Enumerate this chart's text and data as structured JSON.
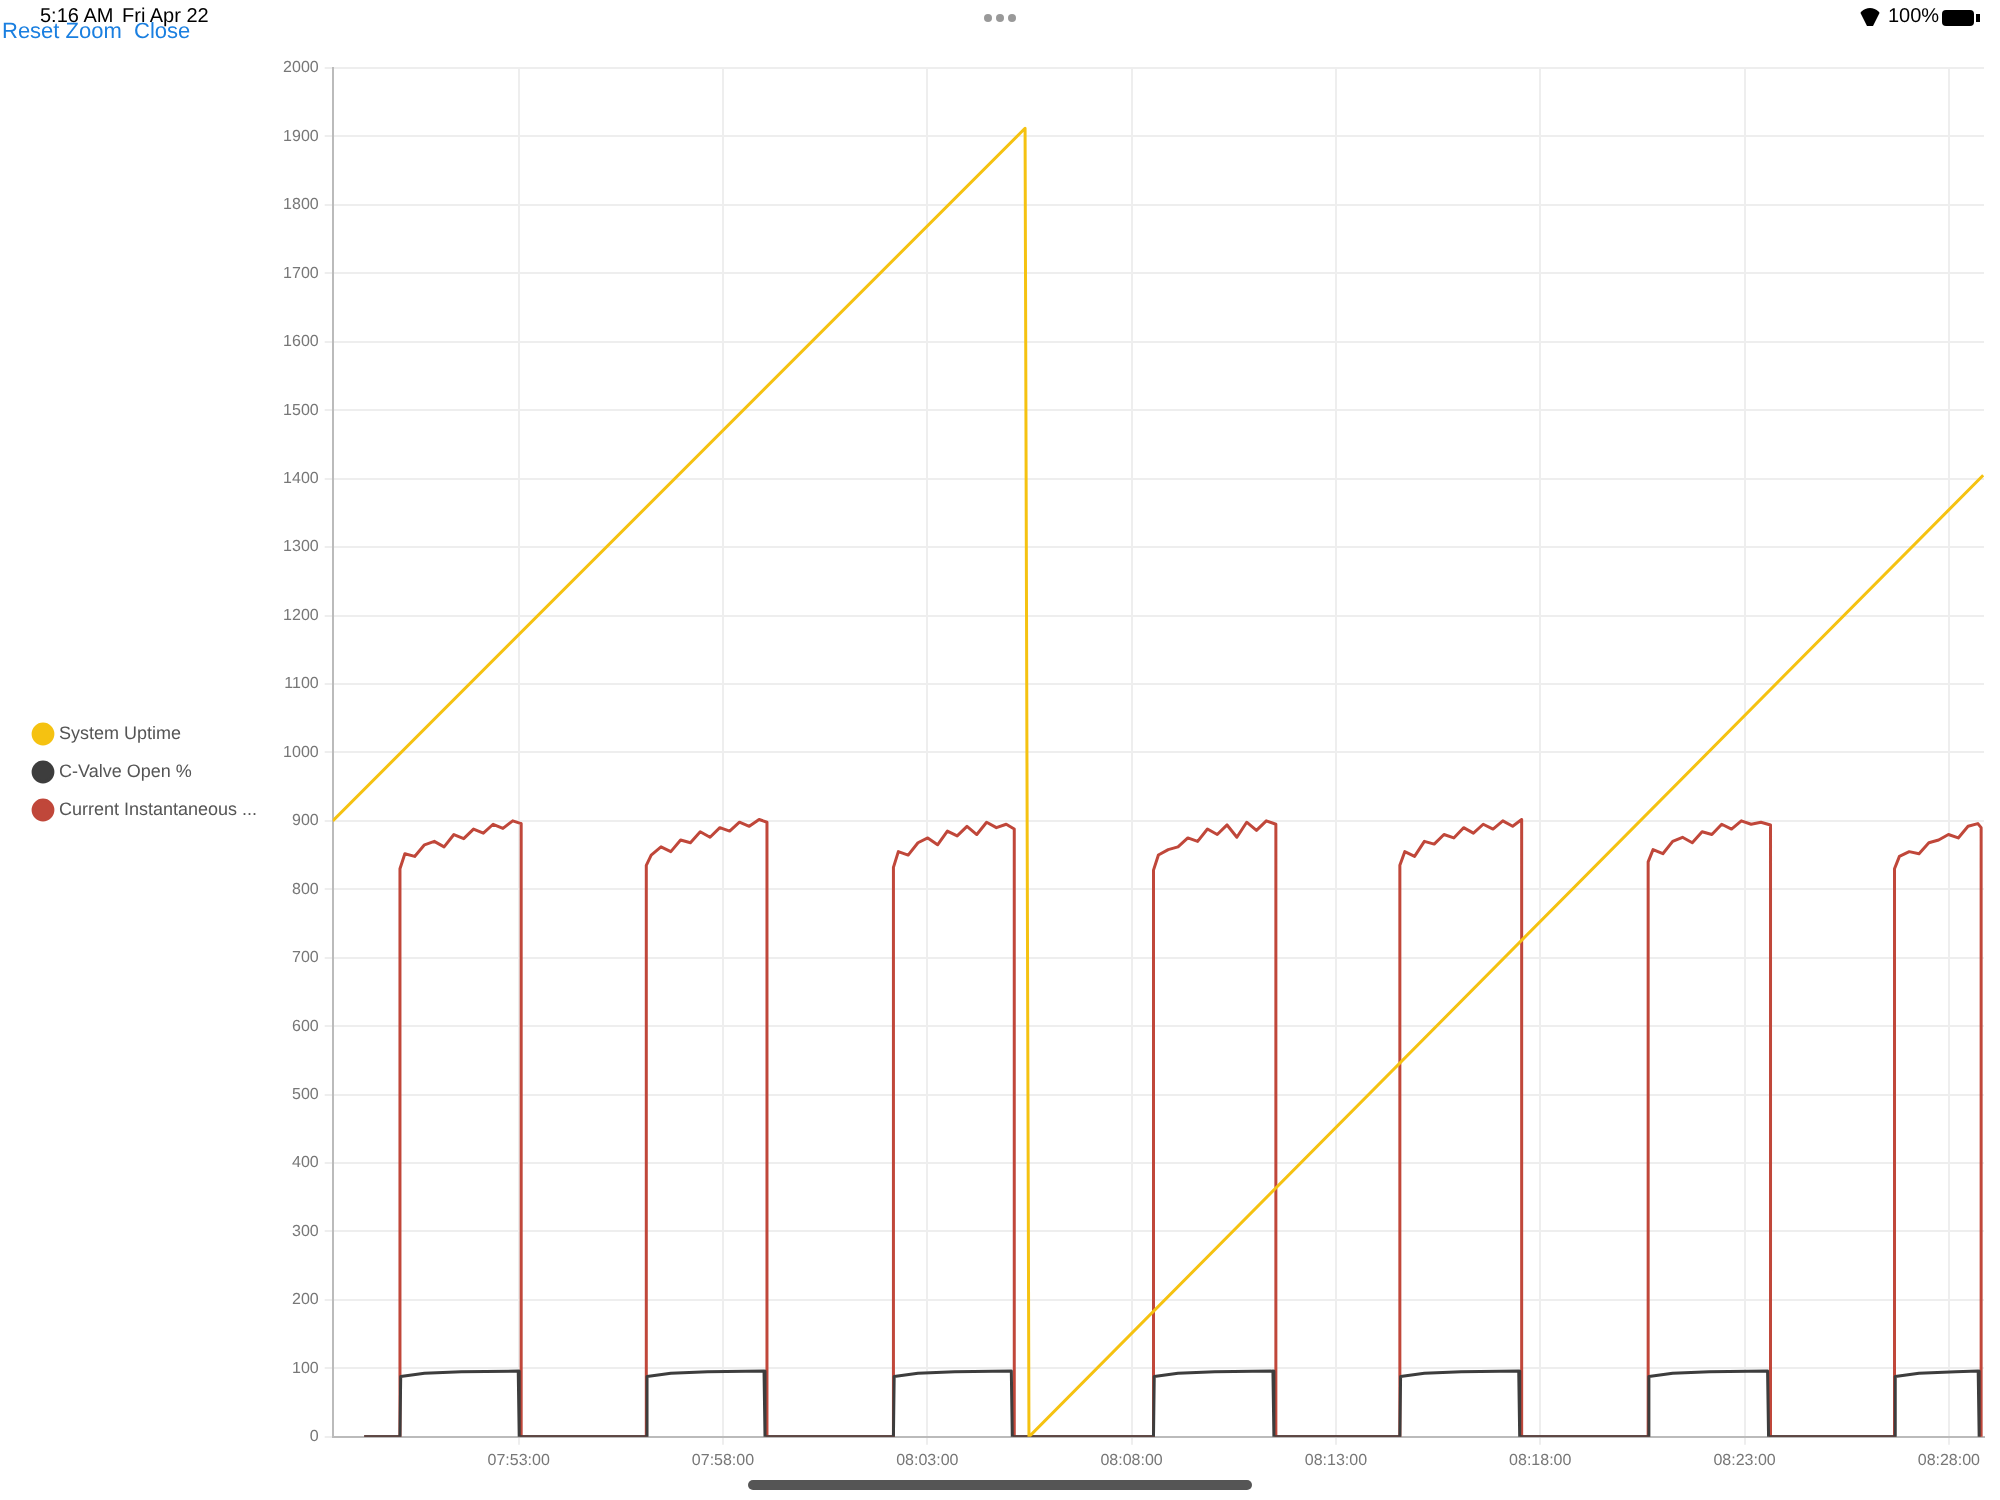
{
  "chart_data": {
    "type": "line",
    "annotations": [
      "5:16 AM",
      "Fri Apr 22",
      "100%",
      "Reset Zoom",
      "Close"
    ],
    "xlim": [
      7.8075,
      8.481
    ],
    "xticks": [
      {
        "value": 7.883333,
        "label": "07:53:00"
      },
      {
        "value": 7.966667,
        "label": "07:58:00"
      },
      {
        "value": 8.05,
        "label": "08:03:00"
      },
      {
        "value": 8.133333,
        "label": "08:08:00"
      },
      {
        "value": 8.216667,
        "label": "08:13:00"
      },
      {
        "value": 8.3,
        "label": "08:18:00"
      },
      {
        "value": 8.383333,
        "label": "08:23:00"
      },
      {
        "value": 8.466667,
        "label": "08:28:00"
      }
    ],
    "ylim": [
      0,
      2000
    ],
    "yticks": [
      0,
      100,
      200,
      300,
      400,
      500,
      600,
      700,
      800,
      900,
      1000,
      1100,
      1200,
      1300,
      1400,
      1500,
      1600,
      1700,
      1800,
      1900,
      2000
    ],
    "grid": true,
    "legend": "left",
    "marker": "none",
    "line_style": "solid",
    "series": [
      {
        "name": "System Uptime",
        "color": "#f5c211",
        "x": [
          7.8075,
          8.08989,
          8.09148,
          8.48067
        ],
        "values": [
          900,
          1912,
          0,
          1405
        ]
      },
      {
        "name": "C-Valve Open %",
        "color": "#3d3d3d",
        "x": [
          7.82033,
          7.83493,
          7.83523,
          7.84493,
          7.85993,
          7.88317,
          7.88357,
          7.9354,
          7.9357,
          7.9454,
          7.9604,
          7.98342,
          7.98382,
          8.0362,
          8.0365,
          8.0462,
          8.0612,
          8.08428,
          8.08468,
          8.14227,
          8.14257,
          8.15227,
          8.16727,
          8.19098,
          8.19138,
          8.24275,
          8.24305,
          8.25275,
          8.26775,
          8.29123,
          8.29163,
          8.34402,
          8.34432,
          8.35402,
          8.36902,
          8.39273,
          8.39313,
          8.4445,
          8.4448,
          8.4545,
          8.4695,
          8.47863,
          8.47903
        ],
        "values": [
          0,
          0,
          88,
          93,
          95,
          96,
          0,
          0,
          88,
          93,
          95,
          96,
          0,
          0,
          88,
          93,
          95,
          96,
          0,
          0,
          88,
          93,
          95,
          96,
          0,
          0,
          88,
          93,
          95,
          96,
          0,
          0,
          88,
          93,
          95,
          96,
          0,
          0,
          88,
          93,
          95,
          96,
          0
        ]
      },
      {
        "name": "Current Instantaneous ...",
        "color": "#c0473a",
        "x": [
          7.82033,
          7.83493,
          7.83493,
          7.83693,
          7.84093,
          7.84493,
          7.84893,
          7.85293,
          7.85693,
          7.86093,
          7.86493,
          7.86893,
          7.87293,
          7.87693,
          7.88093,
          7.88437,
          7.88437,
          7.9354,
          7.9354,
          7.9374,
          7.9414,
          7.9454,
          7.9494,
          7.9534,
          7.9574,
          7.9614,
          7.9654,
          7.9694,
          7.9734,
          7.9774,
          7.9814,
          7.98462,
          7.98462,
          8.0362,
          8.0362,
          8.0382,
          8.0422,
          8.0462,
          8.0502,
          8.0542,
          8.0582,
          8.0622,
          8.0662,
          8.0702,
          8.0742,
          8.0782,
          8.0822,
          8.08548,
          8.08548,
          8.14227,
          8.14227,
          8.14427,
          8.14827,
          8.15227,
          8.15627,
          8.16027,
          8.16427,
          8.16827,
          8.17227,
          8.17627,
          8.18027,
          8.18427,
          8.18827,
          8.19218,
          8.19218,
          8.24275,
          8.24275,
          8.24475,
          8.24875,
          8.25275,
          8.25675,
          8.26075,
          8.26475,
          8.26875,
          8.27275,
          8.27675,
          8.28075,
          8.28475,
          8.28875,
          8.29243,
          8.29243,
          8.34402,
          8.34402,
          8.34602,
          8.35002,
          8.35402,
          8.35802,
          8.36202,
          8.36602,
          8.37002,
          8.37402,
          8.37802,
          8.38202,
          8.38602,
          8.39002,
          8.39393,
          8.39393,
          8.4445,
          8.4445,
          8.4465,
          8.4505,
          8.4545,
          8.4585,
          8.4625,
          8.4665,
          8.4705,
          8.4745,
          8.4785,
          8.47983,
          8.47983
        ],
        "values": [
          0,
          0,
          830,
          852,
          848,
          865,
          870,
          862,
          880,
          874,
          888,
          882,
          895,
          889,
          900,
          896,
          0,
          0,
          835,
          850,
          862,
          855,
          872,
          868,
          884,
          876,
          890,
          885,
          898,
          892,
          902,
          898,
          0,
          0,
          832,
          855,
          850,
          868,
          875,
          865,
          885,
          878,
          892,
          880,
          898,
          890,
          895,
          888,
          0,
          0,
          828,
          850,
          858,
          862,
          875,
          870,
          888,
          880,
          894,
          876,
          898,
          886,
          900,
          895,
          0,
          0,
          835,
          855,
          848,
          870,
          866,
          880,
          875,
          890,
          882,
          895,
          888,
          900,
          892,
          902,
          0,
          0,
          840,
          858,
          852,
          870,
          876,
          868,
          884,
          880,
          895,
          888,
          900,
          895,
          898,
          894,
          0,
          0,
          830,
          848,
          855,
          852,
          868,
          872,
          880,
          875,
          892,
          896,
          890,
          0
        ]
      }
    ]
  }
}
